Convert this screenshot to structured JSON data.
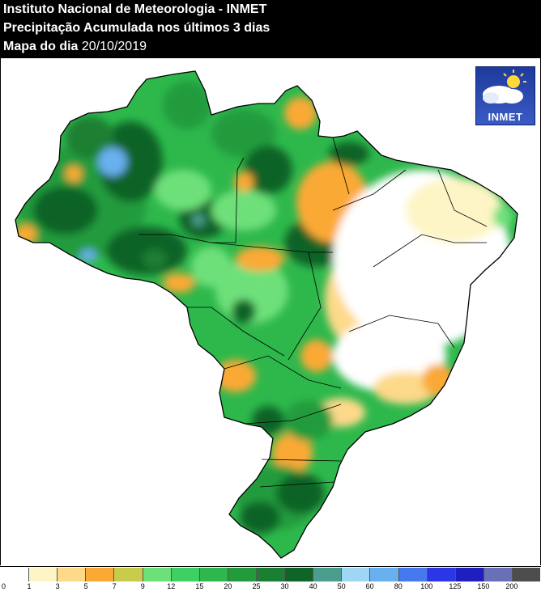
{
  "header": {
    "line1": "Instituto Nacional de Meteorologia - INMET",
    "line2": "Precipitação Acumulada nos últimos 3 dias",
    "line3_label": "Mapa do dia",
    "line3_date": "20/10/2019"
  },
  "logo": {
    "text": "INMET",
    "icon": "sun-cloud-icon"
  },
  "legend": {
    "ticks": [
      "0",
      "1",
      "3",
      "5",
      "7",
      "9",
      "12",
      "15",
      "20",
      "25",
      "30",
      "40",
      "50",
      "60",
      "80",
      "100",
      "125",
      "150",
      "200"
    ],
    "colors": [
      "#ffffff",
      "#fdf5c5",
      "#fdd98a",
      "#fba935",
      "#c9cc4b",
      "#6ee07a",
      "#3fd064",
      "#2eb84c",
      "#239b3c",
      "#1a7f32",
      "#0f6427",
      "#4b9e8e",
      "#9dd7f5",
      "#69b0ef",
      "#4678f0",
      "#2b37e6",
      "#1f1fc0",
      "#6a70b8",
      "#4d4d4d"
    ]
  },
  "map": {
    "colors": {
      "dark_green": "#0f6427",
      "green": "#239b3c",
      "mid_green": "#2eb84c",
      "light_green": "#6ee07a",
      "orange": "#fba935",
      "yellow": "#fdd98a",
      "pale": "#fdf5c5",
      "light_blue": "#9dd7f5",
      "blue": "#69b0ef"
    }
  }
}
